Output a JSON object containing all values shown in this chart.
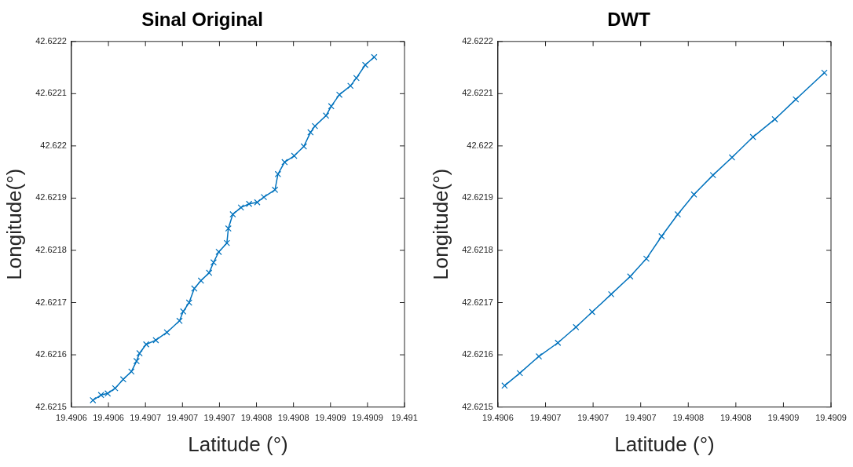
{
  "chart_data": [
    {
      "type": "line",
      "title": "Sinal Original",
      "xlabel": "Latitude (°)",
      "ylabel": "Longitude(°)",
      "marker": "cross",
      "grid": false,
      "legend": false,
      "xlim": [
        19.49055,
        19.491
      ],
      "xticks": [
        {
          "value": 19.49055,
          "label": "19.4906"
        },
        {
          "value": 19.4906,
          "label": "19.4906"
        },
        {
          "value": 19.49065,
          "label": "19.4907"
        },
        {
          "value": 19.4907,
          "label": "19.4907"
        },
        {
          "value": 19.49075,
          "label": "19.4907"
        },
        {
          "value": 19.4908,
          "label": "19.4908"
        },
        {
          "value": 19.49085,
          "label": "19.4908"
        },
        {
          "value": 19.4909,
          "label": "19.4909"
        },
        {
          "value": 19.49095,
          "label": "19.4909"
        },
        {
          "value": 19.491,
          "label": "19.491"
        }
      ],
      "ylim": [
        42.6215,
        42.6222
      ],
      "yticks": [
        42.6215,
        42.6216,
        42.6217,
        42.6218,
        42.6219,
        42.622,
        42.6221,
        42.6222
      ],
      "series": [
        {
          "color": "#0072bd",
          "x": [
            19.490579,
            19.49059,
            19.490599,
            19.490609,
            19.49062,
            19.490631,
            19.490638,
            19.490642,
            19.490651,
            19.490664,
            19.490679,
            19.490696,
            19.490701,
            19.490709,
            19.490716,
            19.490725,
            19.490736,
            19.490742,
            19.490749,
            19.49076,
            19.490762,
            19.490768,
            19.490779,
            19.49079,
            19.490801,
            19.49081,
            19.490825,
            19.490829,
            19.490838,
            19.490851,
            19.490864,
            19.490873,
            19.490879,
            19.490894,
            19.490901,
            19.490912,
            19.490927,
            19.490935,
            19.490947,
            19.490959
          ],
          "values": [
            42.621513,
            42.621523,
            42.621526,
            42.621536,
            42.621553,
            42.621568,
            42.621588,
            42.621603,
            42.62162,
            42.621628,
            42.621643,
            42.621665,
            42.621683,
            42.6217,
            42.621727,
            42.621742,
            42.621757,
            42.621777,
            42.621797,
            42.621814,
            42.621842,
            42.621869,
            42.621882,
            42.621889,
            42.621892,
            42.621902,
            42.621916,
            42.621946,
            42.621969,
            42.621981,
            42.621999,
            42.622026,
            42.622038,
            42.622058,
            42.622076,
            42.622098,
            42.622115,
            42.62213,
            42.622155,
            42.62217
          ]
        }
      ]
    },
    {
      "type": "line",
      "title": "DWT",
      "xlabel": "Latitude (°)",
      "ylabel": "Longitude(°)",
      "marker": "cross",
      "grid": false,
      "legend": false,
      "xlim": [
        19.4906,
        19.49095
      ],
      "xticks": [
        {
          "value": 19.4906,
          "label": "19.4906"
        },
        {
          "value": 19.49065,
          "label": "19.4907"
        },
        {
          "value": 19.4907,
          "label": "19.4907"
        },
        {
          "value": 19.49075,
          "label": "19.4907"
        },
        {
          "value": 19.4908,
          "label": "19.4908"
        },
        {
          "value": 19.49085,
          "label": "19.4908"
        },
        {
          "value": 19.4909,
          "label": "19.4909"
        },
        {
          "value": 19.49095,
          "label": "19.4909"
        }
      ],
      "ylim": [
        42.6215,
        42.6222
      ],
      "yticks": [
        42.6215,
        42.6216,
        42.6217,
        42.6218,
        42.6219,
        42.622,
        42.6221,
        42.6222
      ],
      "series": [
        {
          "color": "#0072bd",
          "x": [
            19.490607,
            19.490623,
            19.490643,
            19.490663,
            19.490682,
            19.490699,
            19.490719,
            19.490739,
            19.490756,
            19.490772,
            19.490789,
            19.490806,
            19.490826,
            19.490846,
            19.490868,
            19.490891,
            19.490913,
            19.490943
          ],
          "values": [
            42.621541,
            42.621565,
            42.621597,
            42.621623,
            42.621653,
            42.621682,
            42.621716,
            42.62175,
            42.621784,
            42.621827,
            42.621869,
            42.621907,
            42.621944,
            42.621978,
            42.622017,
            42.622051,
            42.622089,
            42.62214
          ]
        }
      ]
    }
  ]
}
